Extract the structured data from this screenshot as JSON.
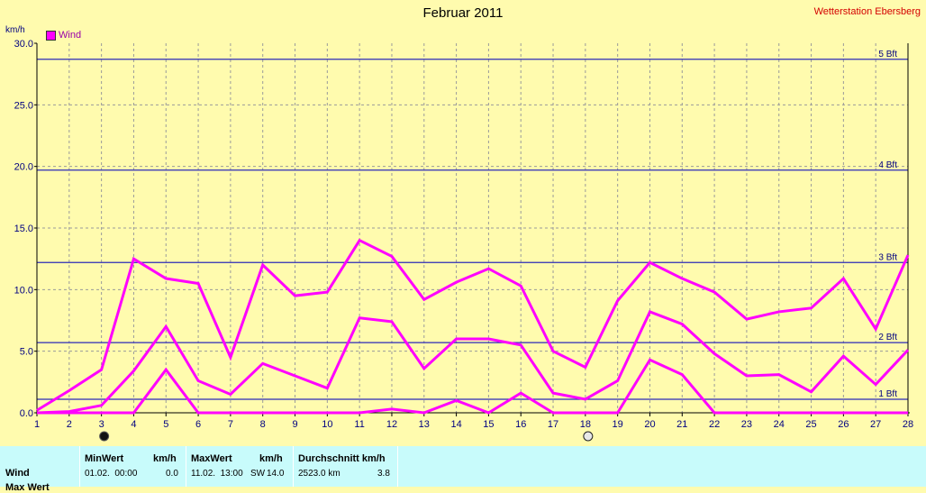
{
  "title": "Februar 2011",
  "station": "Wetterstation Ebersberg",
  "unit": "km/h",
  "legend": "Wind",
  "colors": {
    "series": "#ff00ff",
    "bft": "#2b2bb8",
    "background": "#fffbae",
    "panel": "#c8fbfb"
  },
  "chart_data": {
    "type": "line",
    "title": "Februar 2011",
    "ylabel": "km/h",
    "ylim": [
      0,
      30
    ],
    "yticks": [
      "0.0",
      "5.0",
      "10.0",
      "15.0",
      "20.0",
      "25.0",
      "30.0"
    ],
    "x": [
      1,
      2,
      3,
      4,
      5,
      6,
      7,
      8,
      9,
      10,
      11,
      12,
      13,
      14,
      15,
      16,
      17,
      18,
      19,
      20,
      21,
      22,
      23,
      24,
      25,
      26,
      27,
      28
    ],
    "xticks": [
      "1",
      "2",
      "3",
      "4",
      "5",
      "6",
      "7",
      "8",
      "9",
      "10",
      "11",
      "12",
      "13",
      "14",
      "15",
      "16",
      "17",
      "18",
      "19",
      "20",
      "21",
      "22",
      "23",
      "24",
      "25",
      "26",
      "27",
      "28"
    ],
    "series": [
      {
        "name": "Wind",
        "role": "max",
        "values": [
          0.2,
          1.8,
          3.5,
          12.5,
          10.9,
          10.5,
          4.5,
          12.0,
          9.5,
          9.8,
          14.0,
          12.7,
          9.2,
          10.6,
          11.7,
          10.3,
          5.0,
          3.7,
          9.1,
          12.2,
          10.9,
          9.8,
          7.6,
          8.2,
          8.5,
          10.9,
          6.8,
          12.8
        ]
      },
      {
        "name": "Wind",
        "role": "mean",
        "values": [
          0.0,
          0.1,
          0.6,
          3.4,
          7.0,
          2.6,
          1.5,
          4.0,
          3.0,
          2.0,
          7.7,
          7.4,
          3.6,
          6.0,
          6.0,
          5.5,
          1.6,
          1.1,
          2.6,
          8.2,
          7.2,
          4.8,
          3.0,
          3.1,
          1.7,
          4.6,
          2.3,
          5.1
        ]
      },
      {
        "name": "Wind",
        "role": "min",
        "values": [
          0.0,
          0.0,
          0.0,
          0.0,
          3.5,
          0.0,
          0.0,
          0.0,
          0.0,
          0.0,
          0.0,
          0.3,
          0.0,
          1.0,
          0.0,
          1.6,
          0.0,
          0.0,
          0.0,
          4.3,
          3.1,
          0.0,
          0.0,
          0.0,
          0.0,
          0.0,
          0.0,
          0.0
        ]
      }
    ],
    "reference_lines": [
      {
        "label": "1 Bft",
        "value": 1.1
      },
      {
        "label": "2 Bft",
        "value": 5.7
      },
      {
        "label": "3 Bft",
        "value": 12.2
      },
      {
        "label": "4 Bft",
        "value": 19.7
      },
      {
        "label": "5 Bft",
        "value": 28.7
      }
    ],
    "moon_markers": [
      {
        "day": 3,
        "phase": "new-moon"
      },
      {
        "day": 18,
        "phase": "full-moon"
      }
    ],
    "grid": true
  },
  "stats": {
    "row_label": "Wind",
    "row_label_2": "Max Wert",
    "min_header": "MinWert",
    "min_unit": "km/h",
    "min_time": "01.02.  00:00",
    "min_value": "0.0",
    "max_header": "MaxWert",
    "max_unit": "km/h",
    "max_time": "11.02.  13:00",
    "max_dir": "SW",
    "max_value": "14.0",
    "avg_header": "Durchschnitt km/h",
    "avg_km": "2523.0 km",
    "avg_value": "3.8"
  }
}
